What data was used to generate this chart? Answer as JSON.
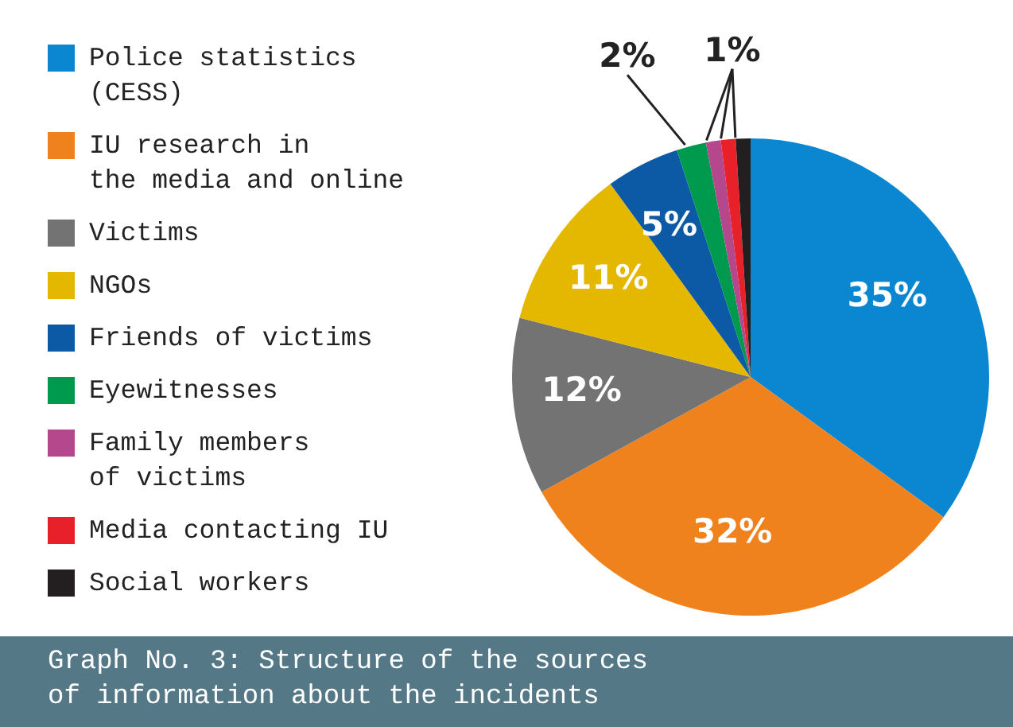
{
  "chart_data": {
    "type": "pie",
    "title": "Graph No. 3: Structure of the sources\nof information about the incidents",
    "categories": [
      "Police statistics\n(CESS)",
      "IU research in\nthe media and online",
      "Victims",
      "NGOs",
      "Friends of victims",
      "Eyewitnesses",
      "Family members\nof victims",
      "Media contacting IU",
      "Social workers"
    ],
    "values": [
      35,
      32,
      12,
      11,
      5,
      2,
      1,
      1,
      1
    ],
    "colors": [
      "#0a87d0",
      "#f0821e",
      "#737373",
      "#e5b800",
      "#0c5aa6",
      "#009a4e",
      "#b5478c",
      "#e8202a",
      "#231f20"
    ],
    "value_labels": [
      "35%",
      "32%",
      "12%",
      "11%",
      "5%",
      "2%",
      "1%",
      null,
      null
    ],
    "legend": "left"
  }
}
